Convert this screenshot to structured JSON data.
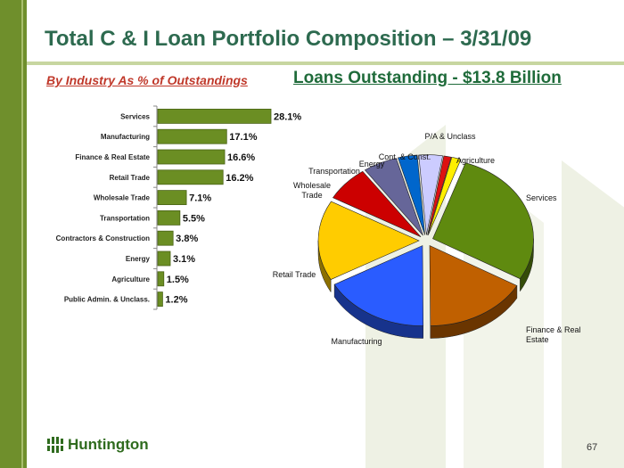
{
  "title": "Total C & I Loan Portfolio Composition – 3/31/09",
  "subtitle_left": "By Industry As % of Outstandings",
  "subtitle_right": "Loans Outstanding - $13.8 Billion",
  "logo_text": "Huntington",
  "page_number": "67",
  "colors": {
    "band": "#6f8f2c",
    "bar": "#6b8e23",
    "title": "#2d6a4f"
  },
  "chart_data": [
    {
      "type": "bar",
      "orientation": "horizontal",
      "categories": [
        "Services",
        "Manufacturing",
        "Finance & Real Estate",
        "Retail Trade",
        "Wholesale Trade",
        "Transportation",
        "Contractors & Construction",
        "Energy",
        "Agriculture",
        "Public Admin. & Unclass."
      ],
      "values": [
        28.1,
        17.1,
        16.6,
        16.2,
        7.1,
        5.5,
        3.8,
        3.1,
        1.5,
        1.2
      ],
      "labels": [
        "28.1%",
        "17.1%",
        "16.6%",
        "16.2%",
        "7.1%",
        "5.5%",
        "3.8%",
        "3.1%",
        "1.5%",
        "1.2%"
      ],
      "xlim": [
        0,
        28.1
      ]
    },
    {
      "type": "pie",
      "style": "3d-exploded",
      "labels": [
        "Services",
        "Finance & Real Estate",
        "Manufacturing",
        "Retail Trade",
        "Wholesale Trade",
        "Transportation",
        "Energy",
        "Cont. & Const.",
        "P/A & Unclass",
        "Agriculture"
      ],
      "values": [
        28.1,
        16.6,
        17.1,
        16.2,
        7.1,
        5.5,
        3.1,
        3.8,
        1.2,
        1.5
      ],
      "colors": [
        "#5f8a0f",
        "#c06000",
        "#2a5cff",
        "#ffcc00",
        "#cc0000",
        "#666699",
        "#0066cc",
        "#ccccff",
        "#dd1111",
        "#ffee00"
      ]
    }
  ]
}
